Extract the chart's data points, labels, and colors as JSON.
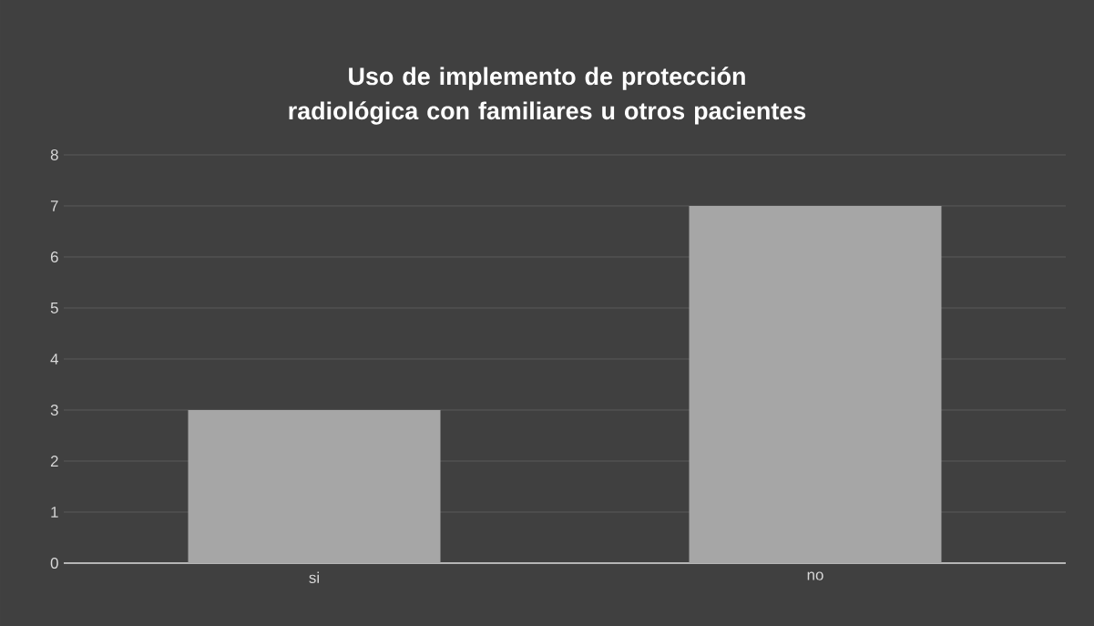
{
  "chart_data": {
    "type": "bar",
    "title": "Uso de implemento de protección radiológica con familiares u otros pacientes",
    "categories": [
      "si",
      "no"
    ],
    "values": [
      3,
      7
    ],
    "color": "#a6a6a6",
    "ylim": [
      0,
      8
    ],
    "yticks": [
      0,
      1,
      2,
      3,
      4,
      5,
      6,
      7,
      8
    ],
    "grid": "y"
  }
}
